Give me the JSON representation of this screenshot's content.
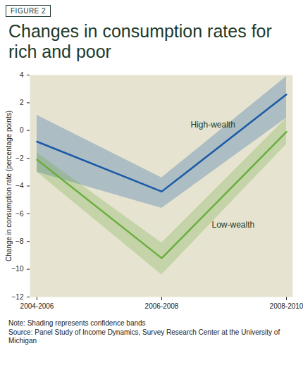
{
  "chart_data": {
    "type": "line",
    "figure_label": "FIGURE 2",
    "title": "Changes in consumption rates for rich and poor",
    "y_label": "Change in consumption rate (percentage points)",
    "categories": [
      "2004-2006",
      "2006-2008",
      "2008-2010"
    ],
    "series": [
      {
        "name": "High-wealth",
        "color": "#1a5aa6",
        "values": [
          -0.8,
          -4.4,
          2.6
        ],
        "lower": [
          -3.0,
          -5.6,
          0.9
        ],
        "upper": [
          1.1,
          -3.4,
          3.9
        ]
      },
      {
        "name": "Low-wealth",
        "color": "#6aae3f",
        "values": [
          -2.1,
          -9.2,
          -0.1
        ],
        "lower": [
          -3.0,
          -10.4,
          -1.0
        ],
        "upper": [
          -1.6,
          -8.1,
          0.9
        ]
      }
    ],
    "ylim": [
      -12,
      4
    ],
    "yticks": [
      4,
      2,
      0,
      -2,
      -4,
      -6,
      -8,
      -10,
      -12
    ],
    "note": "Note: Shading represents confidence bands",
    "source": "Source: Panel Study of Income Dynamics, Survey Research Center at the University of Michigan"
  }
}
